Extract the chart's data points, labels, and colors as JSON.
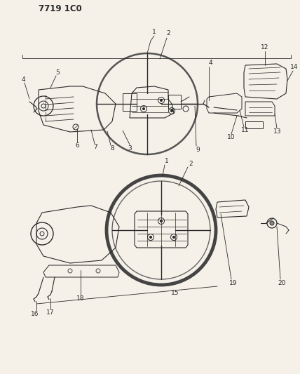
{
  "title": "7719 1C0",
  "bg_color": "#f5f0e8",
  "line_color": "#2a2a2a",
  "fig_width": 4.28,
  "fig_height": 5.33,
  "dpi": 100,
  "title_fontsize": 8.5,
  "label_fontsize": 6.0
}
